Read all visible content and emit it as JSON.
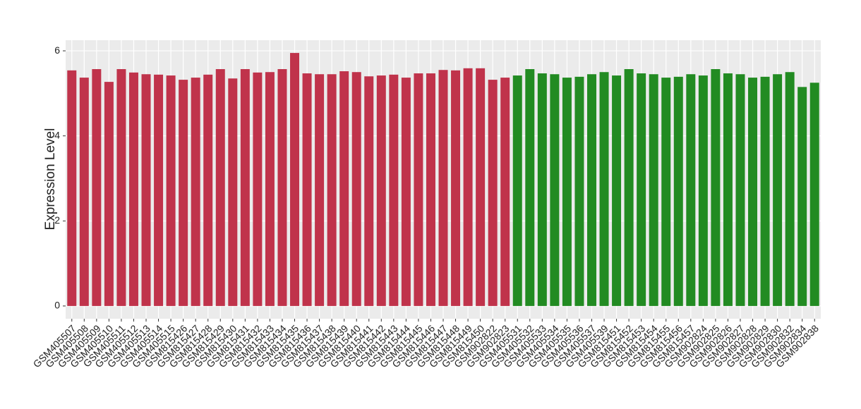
{
  "chart_data": {
    "type": "bar",
    "y_label": "Expression Level",
    "categories": [
      "GSM405507",
      "GSM405508",
      "GSM405509",
      "GSM405510",
      "GSM405511",
      "GSM405512",
      "GSM405513",
      "GSM405514",
      "GSM405515",
      "GSM815426",
      "GSM815427",
      "GSM815428",
      "GSM815429",
      "GSM815430",
      "GSM815431",
      "GSM815432",
      "GSM815433",
      "GSM815434",
      "GSM815435",
      "GSM815436",
      "GSM815437",
      "GSM815438",
      "GSM815439",
      "GSM815440",
      "GSM815441",
      "GSM815442",
      "GSM815443",
      "GSM815444",
      "GSM815445",
      "GSM815446",
      "GSM815447",
      "GSM815448",
      "GSM815449",
      "GSM815450",
      "GSM902822",
      "GSM902823",
      "GSM405531",
      "GSM405532",
      "GSM405533",
      "GSM405534",
      "GSM405535",
      "GSM405536",
      "GSM405537",
      "GSM405539",
      "GSM815451",
      "GSM815452",
      "GSM815453",
      "GSM815454",
      "GSM815455",
      "GSM815456",
      "GSM815457",
      "GSM902824",
      "GSM902825",
      "GSM902826",
      "GSM902827",
      "GSM902828",
      "GSM902829",
      "GSM902830",
      "GSM902832",
      "GSM902834",
      "GSM902838"
    ],
    "values": [
      5.54,
      5.37,
      5.57,
      5.27,
      5.57,
      5.49,
      5.45,
      5.44,
      5.42,
      5.32,
      5.37,
      5.44,
      5.57,
      5.35,
      5.57,
      5.49,
      5.5,
      5.57,
      5.95,
      5.47,
      5.45,
      5.45,
      5.52,
      5.5,
      5.4,
      5.42,
      5.44,
      5.37,
      5.47,
      5.47,
      5.55,
      5.54,
      5.59,
      5.59,
      5.32,
      5.37,
      5.42,
      5.57,
      5.47,
      5.45,
      5.37,
      5.39,
      5.45,
      5.5,
      5.42,
      5.57,
      5.47,
      5.45,
      5.37,
      5.39,
      5.45,
      5.42,
      5.57,
      5.47,
      5.45,
      5.37,
      5.39,
      5.45,
      5.5,
      5.15,
      5.25
    ],
    "colors": [
      "#c0334b",
      "#c0334b",
      "#c0334b",
      "#c0334b",
      "#c0334b",
      "#c0334b",
      "#c0334b",
      "#c0334b",
      "#c0334b",
      "#c0334b",
      "#c0334b",
      "#c0334b",
      "#c0334b",
      "#c0334b",
      "#c0334b",
      "#c0334b",
      "#c0334b",
      "#c0334b",
      "#c0334b",
      "#c0334b",
      "#c0334b",
      "#c0334b",
      "#c0334b",
      "#c0334b",
      "#c0334b",
      "#c0334b",
      "#c0334b",
      "#c0334b",
      "#c0334b",
      "#c0334b",
      "#c0334b",
      "#c0334b",
      "#c0334b",
      "#c0334b",
      "#c0334b",
      "#c0334b",
      "#228b22",
      "#228b22",
      "#228b22",
      "#228b22",
      "#228b22",
      "#228b22",
      "#228b22",
      "#228b22",
      "#228b22",
      "#228b22",
      "#228b22",
      "#228b22",
      "#228b22",
      "#228b22",
      "#228b22",
      "#228b22",
      "#228b22",
      "#228b22",
      "#228b22",
      "#228b22",
      "#228b22",
      "#228b22",
      "#228b22",
      "#228b22",
      "#228b22"
    ],
    "ylim": [
      -0.3,
      6.25
    ],
    "yticks": [
      0,
      2,
      4,
      6
    ],
    "grid": true,
    "panel_background": "#ebebeb"
  }
}
